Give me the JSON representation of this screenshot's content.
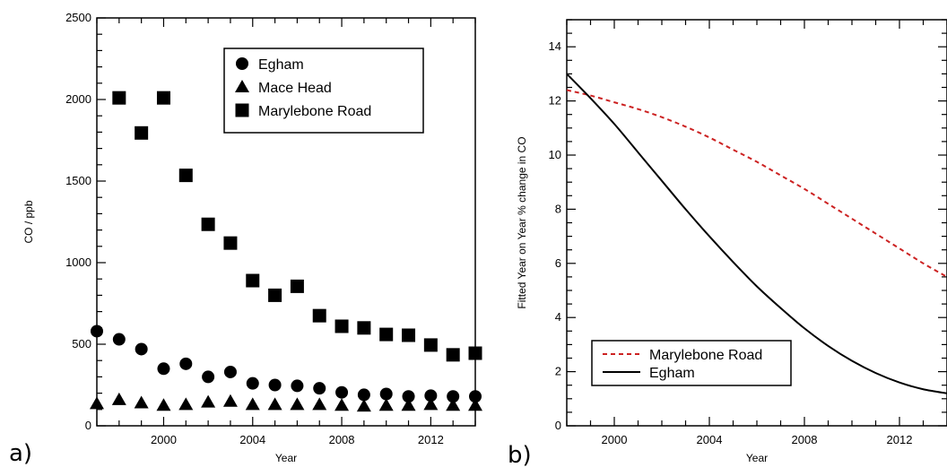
{
  "chart_data": [
    {
      "type": "scatter",
      "panel_label": "a)",
      "xlabel": "Year",
      "ylabel": "CO / ppb",
      "xlim": [
        1997,
        2014
      ],
      "ylim": [
        0,
        2500
      ],
      "x_ticks": [
        2000,
        2004,
        2008,
        2012
      ],
      "y_ticks": [
        0,
        500,
        1000,
        1500,
        2000,
        2500
      ],
      "legend_position": "top-right",
      "series": [
        {
          "name": "Egham",
          "marker": "circle",
          "x": [
            1997,
            1998,
            1999,
            2000,
            2001,
            2002,
            2003,
            2004,
            2005,
            2006,
            2007,
            2008,
            2009,
            2010,
            2011,
            2012,
            2013,
            2014
          ],
          "values": [
            580,
            530,
            470,
            350,
            380,
            300,
            330,
            260,
            250,
            245,
            230,
            205,
            190,
            195,
            180,
            185,
            180,
            180
          ]
        },
        {
          "name": "Mace Head",
          "marker": "triangle",
          "x": [
            1997,
            1998,
            1999,
            2000,
            2001,
            2002,
            2003,
            2004,
            2005,
            2006,
            2007,
            2008,
            2009,
            2010,
            2011,
            2012,
            2013,
            2014
          ],
          "values": [
            135,
            160,
            140,
            125,
            130,
            145,
            150,
            130,
            130,
            130,
            130,
            125,
            120,
            125,
            125,
            130,
            125,
            125
          ]
        },
        {
          "name": "Marylebone Road",
          "marker": "square",
          "x": [
            1998,
            1999,
            2000,
            2001,
            2002,
            2003,
            2004,
            2005,
            2006,
            2007,
            2008,
            2009,
            2010,
            2011,
            2012,
            2013,
            2014
          ],
          "values": [
            2010,
            1795,
            2010,
            1535,
            1235,
            1120,
            890,
            800,
            855,
            675,
            610,
            600,
            560,
            555,
            495,
            435,
            445
          ]
        }
      ]
    },
    {
      "type": "line",
      "panel_label": "b)",
      "xlabel": "Year",
      "ylabel": "Fitted Year on Year % change in CO",
      "xlim": [
        1998,
        2014
      ],
      "ylim": [
        0,
        15
      ],
      "x_ticks": [
        2000,
        2004,
        2008,
        2012
      ],
      "y_ticks": [
        0,
        2,
        4,
        6,
        8,
        10,
        12,
        14
      ],
      "legend_position": "bottom-left",
      "series": [
        {
          "name": "Marylebone Road",
          "style": "dashed",
          "color": "#cc2222",
          "x": [
            1998,
            1999,
            2000,
            2001,
            2002,
            2003,
            2004,
            2005,
            2006,
            2007,
            2008,
            2009,
            2010,
            2011,
            2012,
            2013,
            2014
          ],
          "values": [
            12.4,
            12.2,
            11.95,
            11.7,
            11.4,
            11.05,
            10.65,
            10.2,
            9.75,
            9.25,
            8.75,
            8.2,
            7.65,
            7.1,
            6.55,
            6.0,
            5.5
          ]
        },
        {
          "name": "Egham",
          "style": "solid",
          "color": "#000000",
          "x": [
            1998,
            1999,
            2000,
            2001,
            2002,
            2003,
            2004,
            2005,
            2006,
            2007,
            2008,
            2009,
            2010,
            2011,
            2012,
            2013,
            2014
          ],
          "values": [
            13.0,
            12.1,
            11.15,
            10.1,
            9.05,
            8.0,
            7.0,
            6.05,
            5.15,
            4.35,
            3.6,
            2.95,
            2.4,
            1.95,
            1.6,
            1.35,
            1.2
          ]
        }
      ]
    }
  ]
}
